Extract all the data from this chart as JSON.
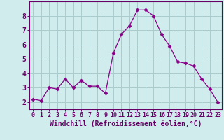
{
  "x": [
    0,
    1,
    2,
    3,
    4,
    5,
    6,
    7,
    8,
    9,
    10,
    11,
    12,
    13,
    14,
    15,
    16,
    17,
    18,
    19,
    20,
    21,
    22,
    23
  ],
  "y": [
    2.2,
    2.1,
    3.0,
    2.9,
    3.6,
    3.0,
    3.5,
    3.1,
    3.1,
    2.6,
    5.4,
    6.7,
    7.3,
    8.4,
    8.4,
    8.0,
    6.7,
    5.9,
    4.8,
    4.7,
    4.5,
    3.6,
    2.9,
    2.0
  ],
  "line_color": "#880088",
  "marker": "D",
  "marker_size": 2.5,
  "bg_color": "#d0ecec",
  "grid_color": "#aacccc",
  "xlabel": "Windchill (Refroidissement éolien,°C)",
  "xlim": [
    -0.5,
    23.5
  ],
  "ylim": [
    1.5,
    9.0
  ],
  "yticks": [
    2,
    3,
    4,
    5,
    6,
    7,
    8
  ],
  "xticks": [
    0,
    1,
    2,
    3,
    4,
    5,
    6,
    7,
    8,
    9,
    10,
    11,
    12,
    13,
    14,
    15,
    16,
    17,
    18,
    19,
    20,
    21,
    22,
    23
  ],
  "axis_color": "#660066",
  "font_color": "#660066",
  "xlabel_fontsize": 7,
  "tick_fontsize_x": 6,
  "tick_fontsize_y": 7
}
